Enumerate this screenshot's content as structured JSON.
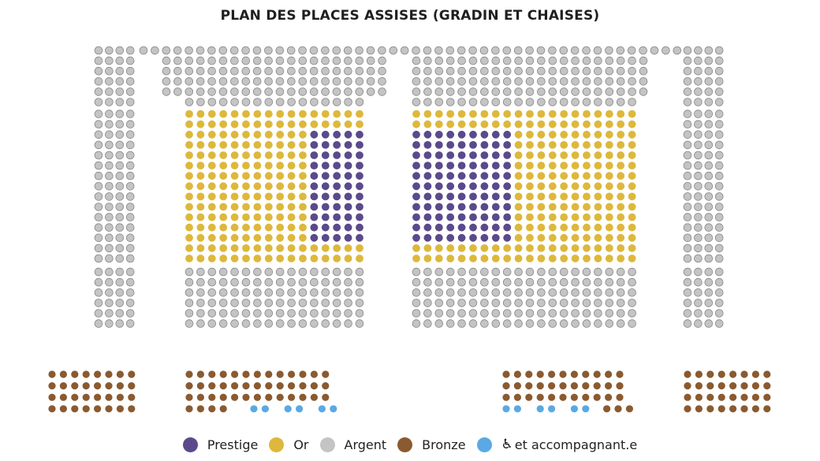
{
  "title": "PLAN DES PLACES ASSISES (GRADIN ET CHAISES)",
  "colors": {
    "prestige": "#5a4a8c",
    "or": "#ddb83c",
    "argent": "#c4c4c4",
    "bronze": "#8a5a30",
    "pmr": "#5aa9e4"
  },
  "legend": [
    {
      "key": "prestige",
      "label": "Prestige"
    },
    {
      "key": "or",
      "label": "Or"
    },
    {
      "key": "argent",
      "label": "Argent"
    },
    {
      "key": "bronze",
      "label": "Bronze"
    },
    {
      "key": "pmr",
      "label": "et accompagnant.e",
      "icon": "wheelchair-icon"
    }
  ]
}
